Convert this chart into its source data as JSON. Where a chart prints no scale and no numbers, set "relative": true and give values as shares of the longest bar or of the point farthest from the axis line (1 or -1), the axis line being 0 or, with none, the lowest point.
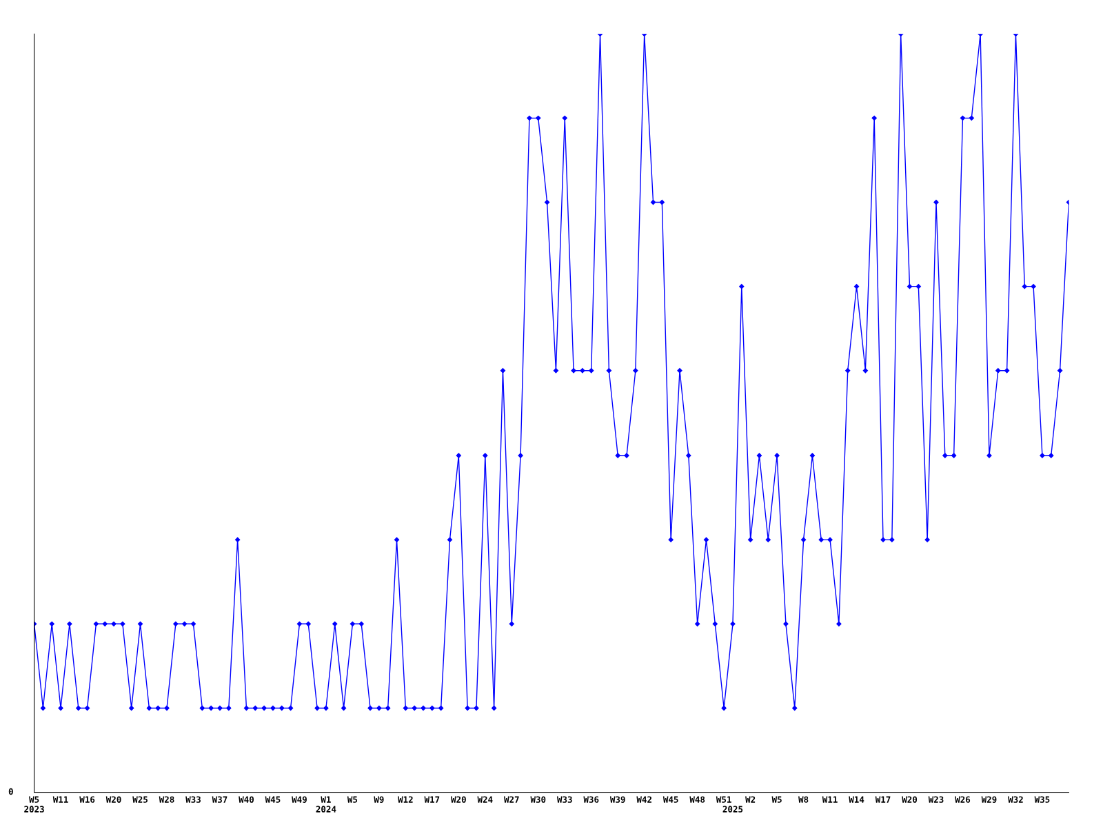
{
  "chart_data": {
    "type": "line",
    "relative": true,
    "marker": "diamond",
    "line_style": "solid",
    "grid": false,
    "legend": false,
    "annotations": [
      "0"
    ],
    "categories": [
      "W5\n2023",
      null,
      null,
      "W11",
      null,
      null,
      "W16",
      null,
      null,
      "W20",
      null,
      null,
      "W25",
      null,
      null,
      "W28",
      null,
      null,
      "W33",
      null,
      null,
      "W37",
      null,
      null,
      "W40",
      null,
      null,
      "W45",
      null,
      null,
      "W49",
      null,
      null,
      "W1\n2024",
      null,
      null,
      "W5",
      null,
      null,
      "W9",
      null,
      null,
      "W12",
      null,
      null,
      "W17",
      null,
      null,
      "W20",
      null,
      null,
      "W24",
      null,
      null,
      "W27",
      null,
      null,
      "W30",
      null,
      null,
      "W33",
      null,
      null,
      "W36",
      null,
      null,
      "W39",
      null,
      null,
      "W42",
      null,
      null,
      "W45",
      null,
      null,
      "W48",
      null,
      null,
      "W51",
      "\n2025",
      null,
      "W2",
      null,
      null,
      "W5",
      null,
      null,
      "W8",
      null,
      null,
      "W11",
      null,
      null,
      "W14",
      null,
      null,
      "W17",
      null,
      null,
      "W20",
      null,
      null,
      "W23",
      null,
      null,
      "W26",
      null,
      null,
      "W29",
      null,
      null,
      "W32",
      null,
      null,
      "W35",
      null,
      null,
      null
    ],
    "series": [
      {
        "color": "#0000ff",
        "values": [
          0.222,
          0.111,
          0.222,
          0.111,
          0.222,
          0.111,
          0.111,
          0.222,
          0.222,
          0.222,
          0.222,
          0.111,
          0.222,
          0.111,
          0.111,
          0.111,
          0.222,
          0.222,
          0.222,
          0.111,
          0.111,
          0.111,
          0.111,
          0.333,
          0.111,
          0.111,
          0.111,
          0.111,
          0.111,
          0.111,
          0.222,
          0.222,
          0.111,
          0.111,
          0.222,
          0.111,
          0.222,
          0.222,
          0.111,
          0.111,
          0.111,
          0.333,
          0.111,
          0.111,
          0.111,
          0.111,
          0.111,
          0.333,
          0.444,
          0.111,
          0.111,
          0.444,
          0.111,
          0.556,
          0.222,
          0.444,
          0.889,
          0.889,
          0.778,
          0.556,
          0.889,
          0.556,
          0.556,
          0.556,
          1,
          0.556,
          0.444,
          0.444,
          0.556,
          1,
          0.778,
          0.778,
          0.333,
          0.556,
          0.444,
          0.222,
          0.333,
          0.222,
          0.111,
          0.222,
          0.667,
          0.333,
          0.444,
          0.333,
          0.444,
          0.222,
          0.111,
          0.333,
          0.444,
          0.333,
          0.333,
          0.222,
          0.556,
          0.667,
          0.556,
          0.889,
          0.333,
          0.333,
          1,
          0.667,
          0.667,
          0.333,
          0.778,
          0.444,
          0.444,
          0.889,
          0.889,
          1,
          0.444,
          0.556,
          0.556,
          1,
          0.667,
          0.667,
          0.444,
          0.444,
          0.556,
          0.778
        ]
      }
    ]
  }
}
